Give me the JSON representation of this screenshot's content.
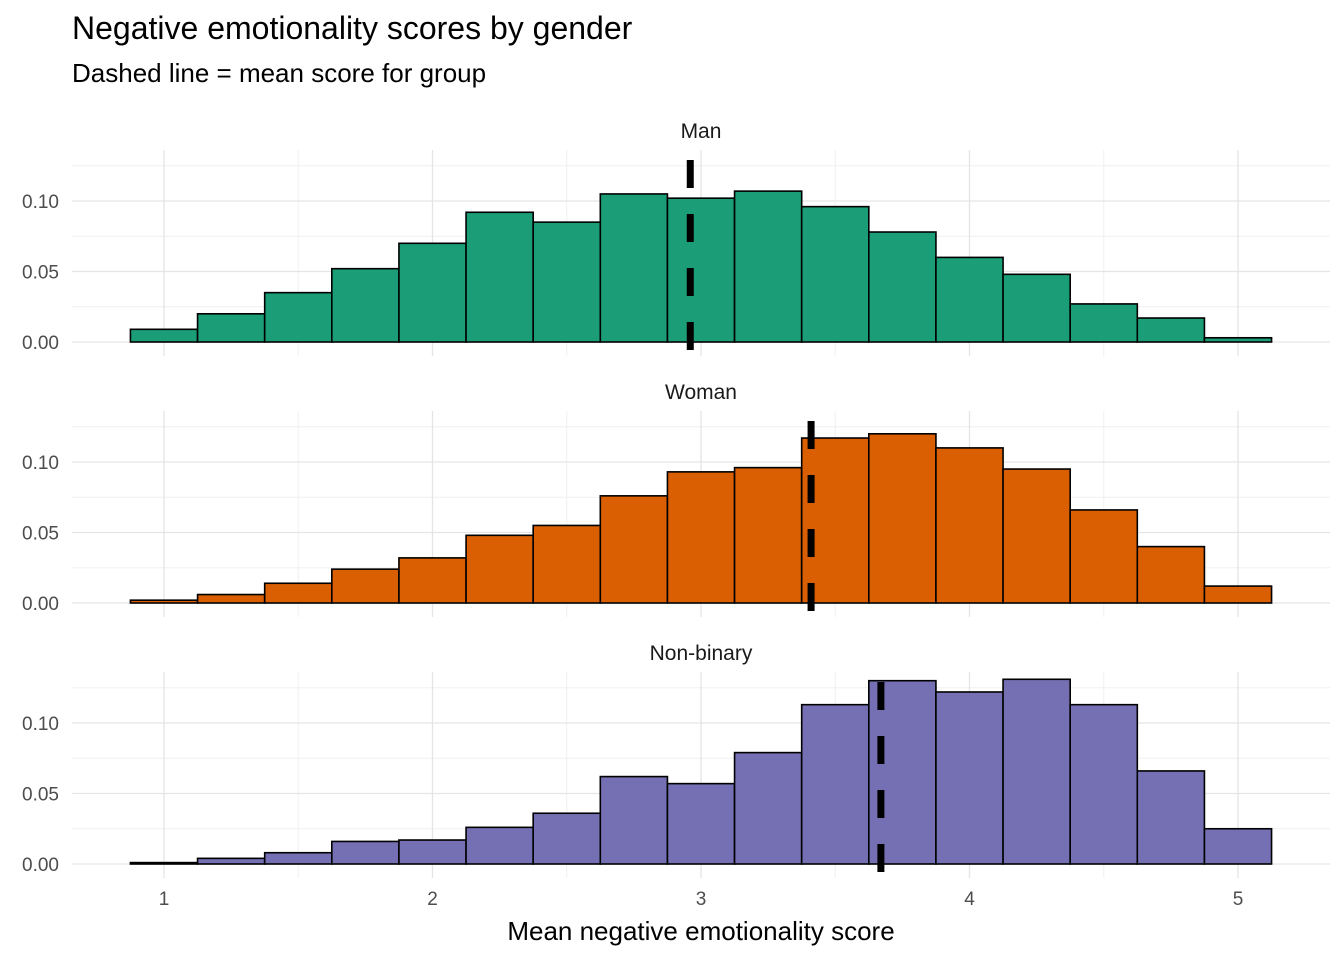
{
  "title": "Negative emotionality scores by gender",
  "subtitle": "Dashed line = mean score for group",
  "chart_data": {
    "type": "bar",
    "xlabel": "Mean negative emotionality score",
    "ylabel": "",
    "xlim": [
      0.75,
      5.35
    ],
    "ylim": [
      0,
      0.135
    ],
    "x_ticks": [
      1,
      2,
      3,
      4,
      5
    ],
    "y_ticks": [
      0.0,
      0.05,
      0.1
    ],
    "y_tick_labels": [
      "0.00",
      "0.05",
      "0.10"
    ],
    "bin_centers": [
      1.0,
      1.25,
      1.5,
      1.75,
      2.0,
      2.25,
      2.5,
      2.75,
      3.0,
      3.25,
      3.5,
      3.75,
      4.0,
      4.25,
      4.5,
      4.75,
      5.0
    ],
    "bin_width": 0.25,
    "grid": true,
    "panels": [
      {
        "name": "Man",
        "color": "#1b9e77",
        "mean": 2.96,
        "values": [
          0.009,
          0.02,
          0.035,
          0.052,
          0.07,
          0.092,
          0.085,
          0.105,
          0.102,
          0.107,
          0.096,
          0.078,
          0.06,
          0.048,
          0.027,
          0.017,
          0.003
        ]
      },
      {
        "name": "Woman",
        "color": "#d95f02",
        "mean": 3.41,
        "values": [
          0.002,
          0.006,
          0.014,
          0.024,
          0.032,
          0.048,
          0.055,
          0.076,
          0.093,
          0.096,
          0.117,
          0.12,
          0.11,
          0.095,
          0.066,
          0.04,
          0.012
        ]
      },
      {
        "name": "Non-binary",
        "color": "#7570b3",
        "mean": 3.67,
        "values": [
          0.001,
          0.004,
          0.008,
          0.016,
          0.017,
          0.026,
          0.036,
          0.062,
          0.057,
          0.079,
          0.113,
          0.13,
          0.122,
          0.131,
          0.113,
          0.066,
          0.025
        ]
      }
    ]
  }
}
